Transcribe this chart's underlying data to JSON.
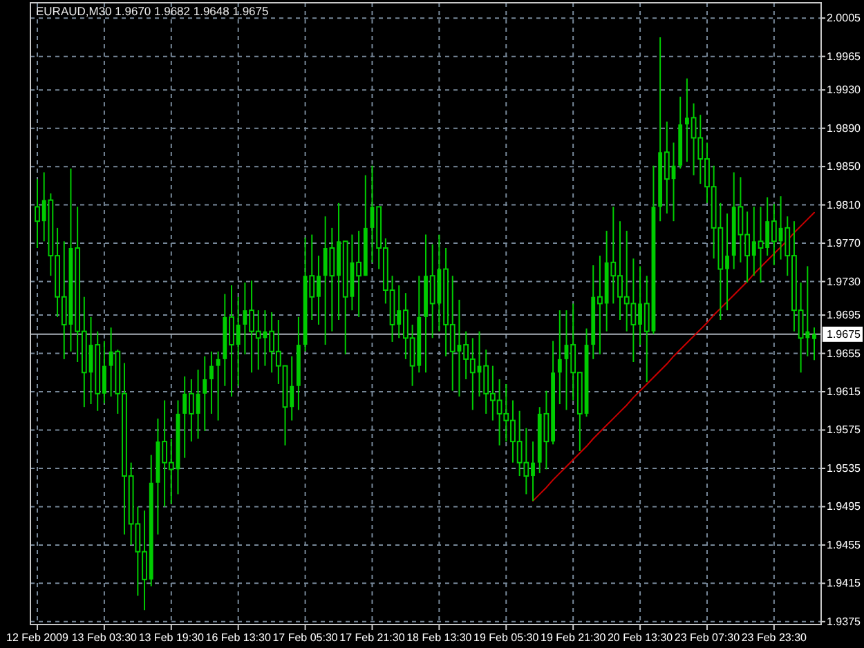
{
  "chart_data": {
    "type": "candlestick",
    "title": "EURAUD,M30 1.9670 1.9682 1.9648 1.9675",
    "categories": [
      "12 Feb 2009",
      null,
      null,
      null,
      null,
      null,
      null,
      null,
      null,
      null,
      "13 Feb 03:30",
      null,
      null,
      null,
      null,
      null,
      null,
      null,
      null,
      null,
      "13 Feb 19:30",
      null,
      null,
      null,
      null,
      null,
      null,
      null,
      null,
      null,
      "16 Feb 13:30",
      null,
      null,
      null,
      null,
      null,
      null,
      null,
      null,
      null,
      "17 Feb 05:30",
      null,
      null,
      null,
      null,
      null,
      null,
      null,
      null,
      null,
      "17 Feb 21:30",
      null,
      null,
      null,
      null,
      null,
      null,
      null,
      null,
      null,
      "18 Feb 13:30",
      null,
      null,
      null,
      null,
      null,
      null,
      null,
      null,
      null,
      "19 Feb 05:30",
      null,
      null,
      null,
      null,
      null,
      null,
      null,
      null,
      null,
      "19 Feb 21:30",
      null,
      null,
      null,
      null,
      null,
      null,
      null,
      null,
      null,
      "20 Feb 13:30",
      null,
      null,
      null,
      null,
      null,
      null,
      null,
      null,
      null,
      "23 Feb 07:30",
      null,
      null,
      null,
      null,
      null,
      null,
      null,
      null,
      null,
      "23 Feb 23:30",
      null,
      null,
      null,
      null,
      null,
      null
    ],
    "color": "#00cc00",
    "ohlc": [
      [
        1.9808,
        1.9837,
        1.9765,
        1.9793
      ],
      [
        1.9793,
        1.9844,
        1.9772,
        1.9815
      ],
      [
        1.9815,
        1.9822,
        1.9736,
        1.9757
      ],
      [
        1.9757,
        1.9786,
        1.9693,
        1.9714
      ],
      [
        1.9714,
        1.9772,
        1.9649,
        1.9685
      ],
      [
        1.9685,
        1.9848,
        1.9657,
        1.9765
      ],
      [
        1.9765,
        1.9808,
        1.9646,
        1.9678
      ],
      [
        1.9678,
        1.9714,
        1.9599,
        1.9635
      ],
      [
        1.9635,
        1.9693,
        1.9602,
        1.9664
      ],
      [
        1.9664,
        1.9678,
        1.9595,
        1.9613
      ],
      [
        1.9613,
        1.9668,
        1.9603,
        1.9642
      ],
      [
        1.9642,
        1.9682,
        1.961,
        1.9657
      ],
      [
        1.9657,
        1.9659,
        1.9592,
        1.9613
      ],
      [
        1.9613,
        1.9645,
        1.9466,
        1.9527
      ],
      [
        1.9527,
        1.9541,
        1.9455,
        1.9477
      ],
      [
        1.9477,
        1.9495,
        1.9402,
        1.9448
      ],
      [
        1.9448,
        1.9491,
        1.9387,
        1.9419
      ],
      [
        1.9419,
        1.9549,
        1.9412,
        1.952
      ],
      [
        1.952,
        1.9587,
        1.9466,
        1.9563
      ],
      [
        1.9563,
        1.9606,
        1.9495,
        1.9541
      ],
      [
        1.9541,
        1.9566,
        1.9498,
        1.9534
      ],
      [
        1.9534,
        1.9606,
        1.9508,
        1.9592
      ],
      [
        1.9592,
        1.9631,
        1.9546,
        1.9613
      ],
      [
        1.9613,
        1.9628,
        1.9563,
        1.9592
      ],
      [
        1.9592,
        1.9638,
        1.9566,
        1.9613
      ],
      [
        1.9613,
        1.9652,
        1.9574,
        1.9628
      ],
      [
        1.9628,
        1.9657,
        1.9592,
        1.9642
      ],
      [
        1.9642,
        1.9657,
        1.9585,
        1.9649
      ],
      [
        1.9649,
        1.9717,
        1.9621,
        1.9693
      ],
      [
        1.9693,
        1.9726,
        1.961,
        1.9664
      ],
      [
        1.9664,
        1.9714,
        1.9621,
        1.9685
      ],
      [
        1.9685,
        1.9729,
        1.9654,
        1.97
      ],
      [
        1.97,
        1.9731,
        1.9635,
        1.9678
      ],
      [
        1.9678,
        1.97,
        1.9638,
        1.9671
      ],
      [
        1.9671,
        1.97,
        1.9642,
        1.9678
      ],
      [
        1.9678,
        1.9698,
        1.9635,
        1.9657
      ],
      [
        1.9657,
        1.969,
        1.9623,
        1.9642
      ],
      [
        1.9642,
        1.9642,
        1.9559,
        1.9599
      ],
      [
        1.9599,
        1.9652,
        1.9585,
        1.9621
      ],
      [
        1.9621,
        1.9693,
        1.9596,
        1.9664
      ],
      [
        1.9664,
        1.9776,
        1.9657,
        1.9736
      ],
      [
        1.9736,
        1.9779,
        1.969,
        1.9714
      ],
      [
        1.9714,
        1.9757,
        1.9685,
        1.9736
      ],
      [
        1.9736,
        1.9798,
        1.9664,
        1.9765
      ],
      [
        1.9765,
        1.9786,
        1.9678,
        1.9736
      ],
      [
        1.9736,
        1.9812,
        1.969,
        1.9772
      ],
      [
        1.9772,
        1.9772,
        1.9654,
        1.9714
      ],
      [
        1.9714,
        1.9779,
        1.97,
        1.975
      ],
      [
        1.975,
        1.9783,
        1.9693,
        1.9736
      ],
      [
        1.9736,
        1.9841,
        1.9736,
        1.9786
      ],
      [
        1.9786,
        1.9851,
        1.975,
        1.9808
      ],
      [
        1.9808,
        1.9808,
        1.9743,
        1.9765
      ],
      [
        1.9765,
        1.9775,
        1.9707,
        1.9721
      ],
      [
        1.9721,
        1.9736,
        1.9667,
        1.9685
      ],
      [
        1.9685,
        1.9726,
        1.9671,
        1.97
      ],
      [
        1.97,
        1.9718,
        1.9649,
        1.9671
      ],
      [
        1.9671,
        1.9685,
        1.9621,
        1.9642
      ],
      [
        1.9642,
        1.9736,
        1.9635,
        1.9693
      ],
      [
        1.9693,
        1.9779,
        1.9635,
        1.9736
      ],
      [
        1.9736,
        1.9769,
        1.9671,
        1.9707
      ],
      [
        1.9707,
        1.9779,
        1.9678,
        1.9743
      ],
      [
        1.9743,
        1.9765,
        1.9652,
        1.9685
      ],
      [
        1.9685,
        1.9736,
        1.9616,
        1.9657
      ],
      [
        1.9657,
        1.9711,
        1.961,
        1.9664
      ],
      [
        1.9664,
        1.9678,
        1.9628,
        1.9649
      ],
      [
        1.9649,
        1.9671,
        1.9596,
        1.9635
      ],
      [
        1.9635,
        1.9678,
        1.961,
        1.9642
      ],
      [
        1.9642,
        1.9659,
        1.9592,
        1.9613
      ],
      [
        1.9613,
        1.9642,
        1.9585,
        1.9606
      ],
      [
        1.9606,
        1.9628,
        1.9559,
        1.9592
      ],
      [
        1.9592,
        1.9623,
        1.9563,
        1.9585
      ],
      [
        1.9585,
        1.9606,
        1.9541,
        1.9563
      ],
      [
        1.9563,
        1.9595,
        1.9527,
        1.9541
      ],
      [
        1.9541,
        1.9577,
        1.9508,
        1.9527
      ],
      [
        1.9527,
        1.9563,
        1.9501,
        1.9541
      ],
      [
        1.9541,
        1.9599,
        1.953,
        1.9592
      ],
      [
        1.9592,
        1.9616,
        1.9534,
        1.9563
      ],
      [
        1.9563,
        1.9668,
        1.956,
        1.9635
      ],
      [
        1.9635,
        1.97,
        1.9602,
        1.9649
      ],
      [
        1.9649,
        1.97,
        1.9596,
        1.9664
      ],
      [
        1.9664,
        1.9707,
        1.9606,
        1.9635
      ],
      [
        1.9635,
        1.9635,
        1.9553,
        1.9592
      ],
      [
        1.9592,
        1.9681,
        1.9589,
        1.9664
      ],
      [
        1.9664,
        1.9747,
        1.9649,
        1.9714
      ],
      [
        1.9714,
        1.9757,
        1.9654,
        1.9707
      ],
      [
        1.9707,
        1.9783,
        1.9678,
        1.975
      ],
      [
        1.975,
        1.9808,
        1.9707,
        1.9736
      ],
      [
        1.9736,
        1.9793,
        1.969,
        1.9714
      ],
      [
        1.9714,
        1.9783,
        1.9678,
        1.9707
      ],
      [
        1.9707,
        1.9754,
        1.9646,
        1.9685
      ],
      [
        1.9685,
        1.9746,
        1.9664,
        1.9707
      ],
      [
        1.9707,
        1.9736,
        1.9625,
        1.9678
      ],
      [
        1.9678,
        1.9851,
        1.9675,
        1.9808
      ],
      [
        1.9808,
        1.9985,
        1.9793,
        1.9865
      ],
      [
        1.9865,
        1.9897,
        1.9801,
        1.9837
      ],
      [
        1.9837,
        1.9875,
        1.9793,
        1.9851
      ],
      [
        1.9851,
        1.9923,
        1.9848,
        1.9894
      ],
      [
        1.9894,
        1.9942,
        1.9855,
        1.9901
      ],
      [
        1.9901,
        1.9916,
        1.9841,
        1.988
      ],
      [
        1.988,
        1.9904,
        1.9832,
        1.9858
      ],
      [
        1.9858,
        1.9875,
        1.9812,
        1.9829
      ],
      [
        1.9829,
        1.9851,
        1.9754,
        1.9786
      ],
      [
        1.9786,
        1.9812,
        1.969,
        1.9743
      ],
      [
        1.9743,
        1.9801,
        1.97,
        1.9757
      ],
      [
        1.9757,
        1.9844,
        1.9743,
        1.9808
      ],
      [
        1.9808,
        1.9839,
        1.975,
        1.9779
      ],
      [
        1.9779,
        1.9803,
        1.9729,
        1.9757
      ],
      [
        1.9757,
        1.9808,
        1.9736,
        1.9772
      ],
      [
        1.9772,
        1.9808,
        1.9729,
        1.9765
      ],
      [
        1.9765,
        1.9818,
        1.9757,
        1.9793
      ],
      [
        1.9793,
        1.9811,
        1.9747,
        1.9772
      ],
      [
        1.9772,
        1.9819,
        1.9753,
        1.9786
      ],
      [
        1.9786,
        1.9798,
        1.9736,
        1.9757
      ],
      [
        1.9757,
        1.9793,
        1.9678,
        1.97
      ],
      [
        1.97,
        1.9729,
        1.9635,
        1.9671
      ],
      [
        1.9671,
        1.9746,
        1.9652,
        1.9678
      ],
      [
        1.967,
        1.9682,
        1.9648,
        1.9675
      ]
    ],
    "series": [
      {
        "type": "line",
        "color": "#cc0000",
        "values": [
          null,
          null,
          null,
          null,
          null,
          null,
          null,
          null,
          null,
          null,
          null,
          null,
          null,
          null,
          null,
          null,
          null,
          null,
          null,
          null,
          null,
          null,
          null,
          null,
          null,
          null,
          null,
          null,
          null,
          null,
          null,
          null,
          null,
          null,
          null,
          null,
          null,
          null,
          null,
          null,
          null,
          null,
          null,
          null,
          null,
          null,
          null,
          null,
          null,
          null,
          null,
          null,
          null,
          null,
          null,
          null,
          null,
          null,
          null,
          null,
          null,
          null,
          null,
          null,
          null,
          null,
          null,
          null,
          null,
          null,
          null,
          null,
          null,
          null,
          1.9501,
          1.9508,
          1.9515,
          1.9523,
          1.953,
          1.9537,
          1.9544,
          1.9551,
          1.9558,
          1.9566,
          1.9573,
          1.958,
          1.9587,
          1.9594,
          1.9601,
          1.9609,
          1.9616,
          1.9623,
          1.963,
          1.9637,
          1.9644,
          1.9652,
          1.9659,
          1.9666,
          1.9673,
          1.968,
          1.9687,
          1.9695,
          1.9702,
          1.9709,
          1.9716,
          1.9723,
          1.973,
          1.9738,
          1.9745,
          1.9752,
          1.9759,
          1.9766,
          1.9773,
          1.9781,
          1.9788,
          1.9795,
          1.9802
        ]
      }
    ],
    "ylim": [
      1.9372,
      2.0021
    ],
    "yticks": [
      2.0005,
      1.9965,
      {
        "value": 1.993,
        "label": "1.9930"
      },
      {
        "value": 1.989,
        "label": "1.9890"
      },
      {
        "value": 1.985,
        "label": "1.9850"
      },
      {
        "value": 1.981,
        "label": "1.9810"
      },
      {
        "value": 1.977,
        "label": "1.9770"
      },
      {
        "value": 1.973,
        "label": "1.9730"
      },
      1.9695,
      1.9655,
      1.9615,
      1.9575,
      1.9535,
      1.9495,
      1.9455,
      1.9415,
      1.9375
    ],
    "grid": true,
    "ref_lines": [
      {
        "axis": "y",
        "value": 1.9675,
        "label": "1.9675",
        "color": "#a8b0b8"
      }
    ]
  }
}
